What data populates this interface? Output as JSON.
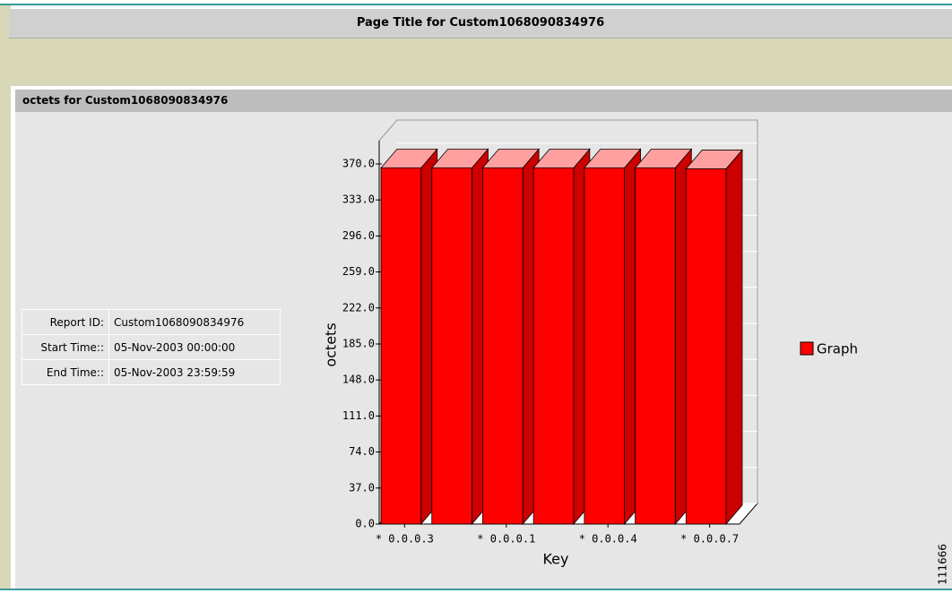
{
  "page_title": "Page Title for Custom1068090834976",
  "section_title": "octets for Custom1068090834976",
  "report_info": [
    {
      "label": "Report ID:",
      "value": "Custom1068090834976"
    },
    {
      "label": "Start Time::",
      "value": "05-Nov-2003 00:00:00"
    },
    {
      "label": "End Time::",
      "value": "05-Nov-2003 23:59:59"
    }
  ],
  "figure_id": "111666",
  "chart_data": {
    "type": "bar3d",
    "xlabel": "Key",
    "ylabel": "octets",
    "categories": [
      "* 0.0.0.3",
      null,
      "* 0.0.0.1",
      null,
      "* 0.0.0.4",
      null,
      "* 0.0.0.7"
    ],
    "series": [
      {
        "name": "Graph",
        "color": "#ff0000",
        "values": [
          366,
          366,
          366,
          366,
          366,
          366,
          365
        ]
      }
    ],
    "ylim": [
      0,
      370
    ],
    "yticks": [
      {
        "value": 0,
        "label": "0.0"
      },
      {
        "value": 37,
        "label": "37.0"
      },
      {
        "value": 74,
        "label": "74.0"
      },
      {
        "value": 111,
        "label": "111.0"
      },
      {
        "value": 148,
        "label": "148.0"
      },
      {
        "value": 185,
        "label": "185.0"
      },
      {
        "value": 222,
        "label": "222.0"
      },
      {
        "value": 259,
        "label": "259.0"
      },
      {
        "value": 296,
        "label": "296.0"
      },
      {
        "value": 333,
        "label": "333.0"
      },
      {
        "value": 370,
        "label": "370.0"
      }
    ],
    "legend": "right"
  }
}
